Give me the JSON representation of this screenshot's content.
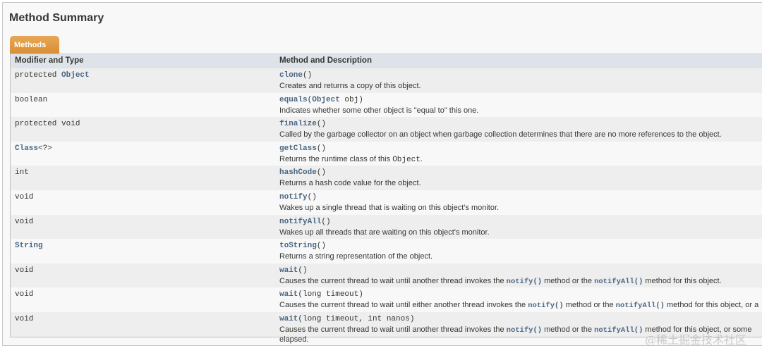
{
  "title": "Method Summary",
  "tab": "Methods",
  "columns": [
    "Modifier and Type",
    "Method and Description"
  ],
  "rows": [
    {
      "mod": [
        {
          "t": "protected "
        },
        {
          "t": "Object",
          "link": true
        }
      ],
      "name": "clone",
      "params": "()",
      "desc": [
        {
          "t": "Creates and returns a copy of this object."
        }
      ]
    },
    {
      "mod": [
        {
          "t": "boolean"
        }
      ],
      "name": "equals",
      "params": [
        {
          "t": "("
        },
        {
          "t": "Object",
          "link": true
        },
        {
          "t": " obj)"
        }
      ],
      "desc": [
        {
          "t": "Indicates whether some other object is \"equal to\" this one."
        }
      ]
    },
    {
      "mod": [
        {
          "t": "protected void"
        }
      ],
      "name": "finalize",
      "params": "()",
      "desc": [
        {
          "t": "Called by the garbage collector on an object when garbage collection determines that there are no more references to the object."
        }
      ]
    },
    {
      "mod": [
        {
          "t": "Class",
          "link": true
        },
        {
          "t": "<?>"
        }
      ],
      "name": "getClass",
      "params": "()",
      "desc": [
        {
          "t": "Returns the runtime class of this "
        },
        {
          "t": "Object",
          "code": true
        },
        {
          "t": "."
        }
      ]
    },
    {
      "mod": [
        {
          "t": "int"
        }
      ],
      "name": "hashCode",
      "params": "()",
      "desc": [
        {
          "t": "Returns a hash code value for the object."
        }
      ]
    },
    {
      "mod": [
        {
          "t": "void"
        }
      ],
      "name": "notify",
      "params": "()",
      "desc": [
        {
          "t": "Wakes up a single thread that is waiting on this object's monitor."
        }
      ]
    },
    {
      "mod": [
        {
          "t": "void"
        }
      ],
      "name": "notifyAll",
      "params": "()",
      "desc": [
        {
          "t": "Wakes up all threads that are waiting on this object's monitor."
        }
      ]
    },
    {
      "mod": [
        {
          "t": "String",
          "link": true
        }
      ],
      "name": "toString",
      "params": "()",
      "desc": [
        {
          "t": "Returns a string representation of the object."
        }
      ]
    },
    {
      "mod": [
        {
          "t": "void"
        }
      ],
      "name": "wait",
      "params": "()",
      "desc": [
        {
          "t": "Causes the current thread to wait until another thread invokes the "
        },
        {
          "t": "notify()",
          "link": true
        },
        {
          "t": " method or the "
        },
        {
          "t": "notifyAll()",
          "link": true
        },
        {
          "t": " method for this object."
        }
      ]
    },
    {
      "mod": [
        {
          "t": "void"
        }
      ],
      "name": "wait",
      "params": "(long timeout)",
      "desc": [
        {
          "t": "Causes the current thread to wait until either another thread invokes the "
        },
        {
          "t": "notify()",
          "link": true
        },
        {
          "t": " method or the "
        },
        {
          "t": "notifyAll()",
          "link": true
        },
        {
          "t": " method for this object, or a"
        }
      ]
    },
    {
      "mod": [
        {
          "t": "void"
        }
      ],
      "name": "wait",
      "params": "(long timeout, int nanos)",
      "desc": [
        {
          "t": "Causes the current thread to wait until another thread invokes the "
        },
        {
          "t": "notify()",
          "link": true
        },
        {
          "t": " method or the "
        },
        {
          "t": "notifyAll()",
          "link": true
        },
        {
          "t": " method for this object, or some"
        }
      ],
      "desc2": "elapsed."
    }
  ],
  "watermark": "@稀土掘金技术社区",
  "colors": {
    "link": "#4a6782",
    "tab": "#dc9a45",
    "header_bg": "#dee3e9",
    "odd_row": "#eeeeef"
  }
}
